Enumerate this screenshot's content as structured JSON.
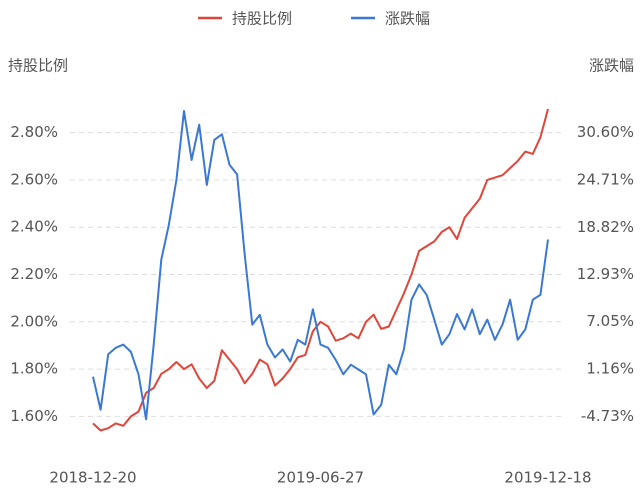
{
  "chart_data": {
    "type": "line",
    "y_label": "持股比例",
    "y2_label": "涨跌幅",
    "categories": [
      "2018-12-20",
      null,
      null,
      null,
      null,
      null,
      null,
      null,
      null,
      null,
      null,
      null,
      null,
      null,
      null,
      null,
      null,
      null,
      null,
      null,
      null,
      null,
      null,
      null,
      null,
      null,
      null,
      null,
      null,
      null,
      "2019-06-27",
      null,
      null,
      null,
      null,
      null,
      null,
      null,
      null,
      null,
      null,
      null,
      null,
      null,
      null,
      null,
      null,
      null,
      null,
      null,
      null,
      null,
      null,
      null,
      null,
      null,
      null,
      null,
      null,
      null,
      "2019-12-18"
    ],
    "series": [
      {
        "name": "持股比例",
        "color": "#e0453a",
        "values": [
          1.57,
          1.54,
          1.55,
          1.57,
          1.56,
          1.6,
          1.62,
          1.7,
          1.72,
          1.78,
          1.8,
          1.83,
          1.8,
          1.82,
          1.76,
          1.72,
          1.75,
          1.88,
          1.84,
          1.8,
          1.74,
          1.78,
          1.84,
          1.82,
          1.73,
          1.76,
          1.8,
          1.85,
          1.86,
          1.96,
          2.0,
          1.98,
          1.92,
          1.93,
          1.95,
          1.93,
          2.0,
          2.03,
          1.97,
          1.98,
          2.05,
          2.12,
          2.2,
          2.3,
          2.32,
          2.34,
          2.38,
          2.4,
          2.35,
          2.44,
          2.48,
          2.52,
          2.6,
          2.61,
          2.62,
          2.65,
          2.68,
          2.72,
          2.71,
          2.78,
          2.9
        ]
      },
      {
        "name": "涨跌幅",
        "color": "#3a78d4",
        "axis": "y2",
        "values": [
          0.2,
          -3.9,
          3.0,
          3.8,
          4.2,
          3.3,
          0.5,
          -5.1,
          4.2,
          14.8,
          19.1,
          24.7,
          33.3,
          27.2,
          31.6,
          24.1,
          29.7,
          30.4,
          26.6,
          25.4,
          15.4,
          6.7,
          7.9,
          4.2,
          2.6,
          3.6,
          2.1,
          4.8,
          4.2,
          8.6,
          4.2,
          3.8,
          2.3,
          0.5,
          1.7,
          1.1,
          0.5,
          -4.5,
          -3.3,
          1.7,
          0.5,
          3.6,
          9.8,
          11.7,
          10.4,
          7.3,
          4.2,
          5.5,
          8.0,
          6.1,
          8.6,
          5.5,
          7.3,
          4.8,
          6.7,
          9.8,
          4.8,
          6.1,
          9.8,
          10.4,
          17.3
        ]
      }
    ],
    "ylim": [
      1.5,
      2.9
    ],
    "yticks": [
      {
        "value": 1.6,
        "label": "1.60%"
      },
      {
        "value": 1.8,
        "label": "1.80%"
      },
      {
        "value": 2.0,
        "label": "2.00%"
      },
      {
        "value": 2.2,
        "label": "2.20%"
      },
      {
        "value": 2.4,
        "label": "2.40%"
      },
      {
        "value": 2.6,
        "label": "2.60%"
      },
      {
        "value": 2.8,
        "label": "2.80%"
      }
    ],
    "y2lim": [
      -7.68,
      33.55
    ],
    "y2ticks": [
      {
        "value": -4.73,
        "label": "-4.73%"
      },
      {
        "value": 1.16,
        "label": "1.16%"
      },
      {
        "value": 7.05,
        "label": "7.05%"
      },
      {
        "value": 12.93,
        "label": "12.93%"
      },
      {
        "value": 18.82,
        "label": "18.82%"
      },
      {
        "value": 24.71,
        "label": "24.71%"
      },
      {
        "value": 30.6,
        "label": "30.60%"
      }
    ],
    "grid": true
  }
}
